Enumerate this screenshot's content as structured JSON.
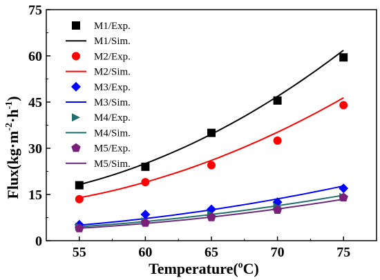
{
  "chart_data": {
    "type": "scatter",
    "xlabel": "Temperature(",
    "xlabel_sup": "o",
    "xlabel_end": "C)",
    "ylabel_main": "Flux(kg·m",
    "ylabel_sup1": "-2",
    "ylabel_mid": "·h",
    "ylabel_sup2": "-1",
    "ylabel_end": ")",
    "xlim": [
      52.5,
      77.5
    ],
    "ylim": [
      0,
      75
    ],
    "xticks": [
      55,
      60,
      65,
      70,
      75
    ],
    "yticks": [
      0,
      15,
      30,
      45,
      60,
      75
    ],
    "legend_position": "top-left",
    "x": [
      55,
      60,
      65,
      70,
      75
    ],
    "series": [
      {
        "name": "M1/Exp.",
        "kind": "exp",
        "marker": "square",
        "color": "#000000",
        "values": [
          18.0,
          24.0,
          35.0,
          45.5,
          59.5
        ]
      },
      {
        "name": "M1/Sim.",
        "kind": "sim",
        "color": "#000000",
        "values": [
          18.0,
          25.5,
          34.5,
          46.5,
          62.0
        ]
      },
      {
        "name": "M2/Exp.",
        "kind": "exp",
        "marker": "circle",
        "color": "#ff0000",
        "values": [
          13.5,
          19.0,
          24.5,
          32.5,
          44.0
        ]
      },
      {
        "name": "M2/Sim.",
        "kind": "sim",
        "color": "#ff0000",
        "values": [
          13.8,
          19.3,
          26.0,
          35.0,
          46.5
        ]
      },
      {
        "name": "M3/Exp.",
        "kind": "exp",
        "marker": "diamond",
        "color": "#0000ff",
        "values": [
          5.2,
          8.5,
          10.2,
          12.5,
          17.0
        ]
      },
      {
        "name": "M3/Sim.",
        "kind": "sim",
        "color": "#0000ff",
        "values": [
          5.0,
          7.3,
          10.0,
          13.5,
          17.8
        ]
      },
      {
        "name": "M4/Exp.",
        "kind": "exp",
        "marker": "triangle-right",
        "color": "#1f6e6e",
        "values": [
          4.5,
          6.3,
          8.5,
          11.0,
          14.2
        ]
      },
      {
        "name": "M4/Sim.",
        "kind": "sim",
        "color": "#1f6e6e",
        "values": [
          4.5,
          6.3,
          8.5,
          11.3,
          14.8
        ]
      },
      {
        "name": "M5/Exp.",
        "kind": "exp",
        "marker": "pentagon",
        "color": "#7a1f7a",
        "values": [
          4.0,
          5.8,
          7.6,
          10.0,
          14.0
        ]
      },
      {
        "name": "M5/Sim.",
        "kind": "sim",
        "color": "#6a2a7a",
        "values": [
          4.0,
          5.7,
          7.7,
          10.2,
          13.5
        ]
      }
    ]
  }
}
